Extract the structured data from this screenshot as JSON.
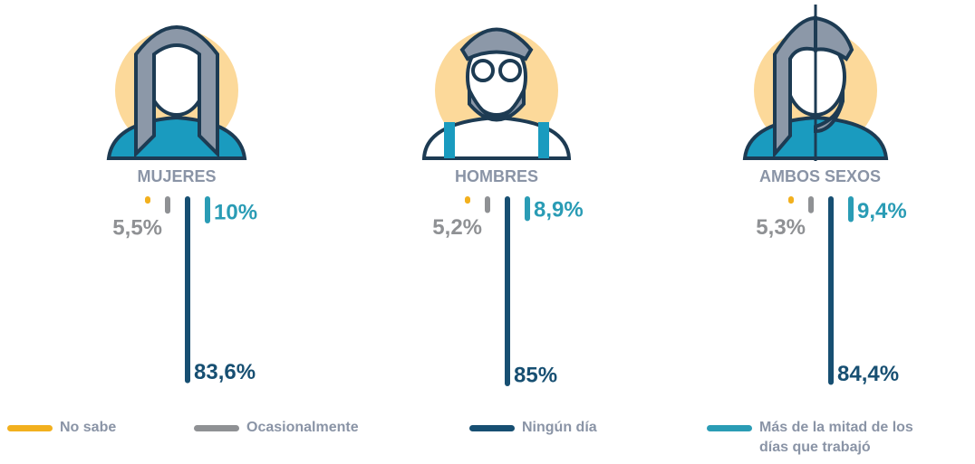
{
  "chart_data": {
    "type": "bar",
    "categories": [
      "MUJERES",
      "HOMBRES",
      "AMBOS SEXOS"
    ],
    "series": [
      {
        "name": "No sabe",
        "color": "#f2b01e",
        "values": [
          0.9,
          0.9,
          0.9
        ]
      },
      {
        "name": "Ocasionalmente",
        "color": "#8f9194",
        "values": [
          5.5,
          5.2,
          5.3
        ],
        "value_labels": [
          "5,5%",
          "5,2%",
          "5,3%"
        ]
      },
      {
        "name": "Ningún día",
        "color": "#174f72",
        "values": [
          83.6,
          85,
          84.4
        ],
        "value_labels": [
          "83,6%",
          "85%",
          "84,4%"
        ]
      },
      {
        "name": "Más de la mitad de los días que trabajó",
        "color": "#2a9cb5",
        "values": [
          10,
          8.9,
          9.4
        ],
        "value_labels": [
          "10%",
          "8,9%",
          "9,4%"
        ]
      }
    ]
  }
}
